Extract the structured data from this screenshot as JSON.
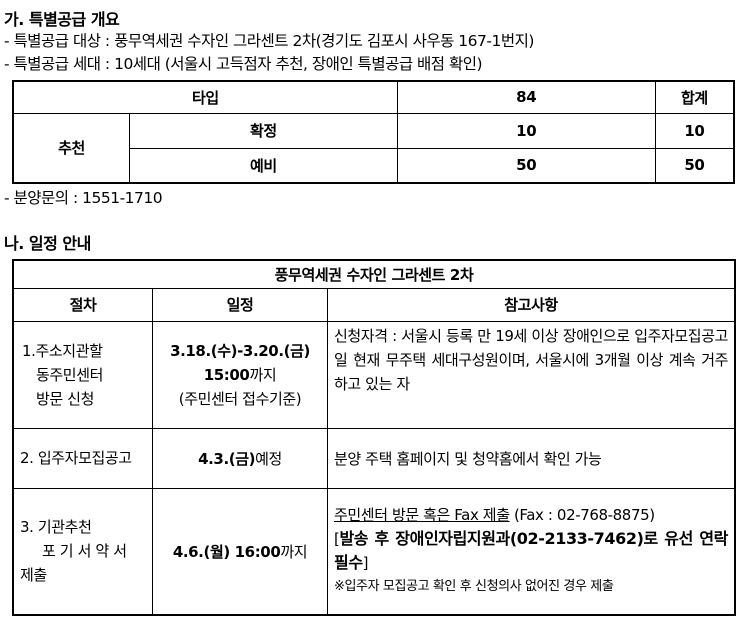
{
  "section_a": {
    "title": "가. 특별공급 개요",
    "line1": "- 특별공급 대상 : 풍무역세권 수자인 그라센트 2차(경기도 김포시 사우동 167-1번지)",
    "line2": "- 특별공급 세대 : 10세대 (서울시 고득점자 추천, 장애인 특별공급 배점 확인)",
    "table": {
      "h_type": "타입",
      "h_84": "84",
      "h_total": "합계",
      "group": "추천",
      "rows": [
        {
          "label": "확정",
          "v84": "10",
          "total": "10"
        },
        {
          "label": "예비",
          "v84": "50",
          "total": "50"
        }
      ]
    },
    "inquiry": "- 분양문의 : 1551-1710"
  },
  "section_b": {
    "title": "나. 일정 안내",
    "table_title": "풍무역세권 수자인 그라센트 2차",
    "headers": [
      "절차",
      "일정",
      "참고사항"
    ],
    "r1": {
      "step": [
        "1.주소지관할",
        "동주민센터",
        "방문 신청"
      ],
      "date_bold": "3.18.(수)-3.20.(금)",
      "time_bold": "15:00",
      "time_suffix": "까지",
      "note_paren": "(주민센터 접수기준)",
      "ref": "신청자격 : 서울시 등록 만 19세 이상 장애인으로 입주자모집공고일 현재 무주택 세대구성원이며, 서울시에 3개월 이상 계속 거주하고 있는 자"
    },
    "r2": {
      "step": "2. 입주자모집공고",
      "date_bold": "4.3.(금)",
      "date_suffix": "예정",
      "ref": "분양 주택 홈페이지 및 청약홈에서 확인 가능"
    },
    "r3": {
      "step": [
        "3. 기관추천",
        "포기서약서",
        "제출"
      ],
      "date_bold": "4.6.(월) 16:00",
      "date_suffix": "까지",
      "ref_underline": "주민센터 방문 혹은 Fax 제출",
      "ref_fax": " (Fax : 02-768-8875)",
      "ref_bold_open": "[",
      "ref_bold": "발송 후 장애인자립지원과(02-2133-7462)로 유선 연락 필수",
      "ref_bold_close": "]",
      "ref_note": "※입주자 모집공고 확인 후 신청의사 없어진 경우 제출"
    }
  }
}
